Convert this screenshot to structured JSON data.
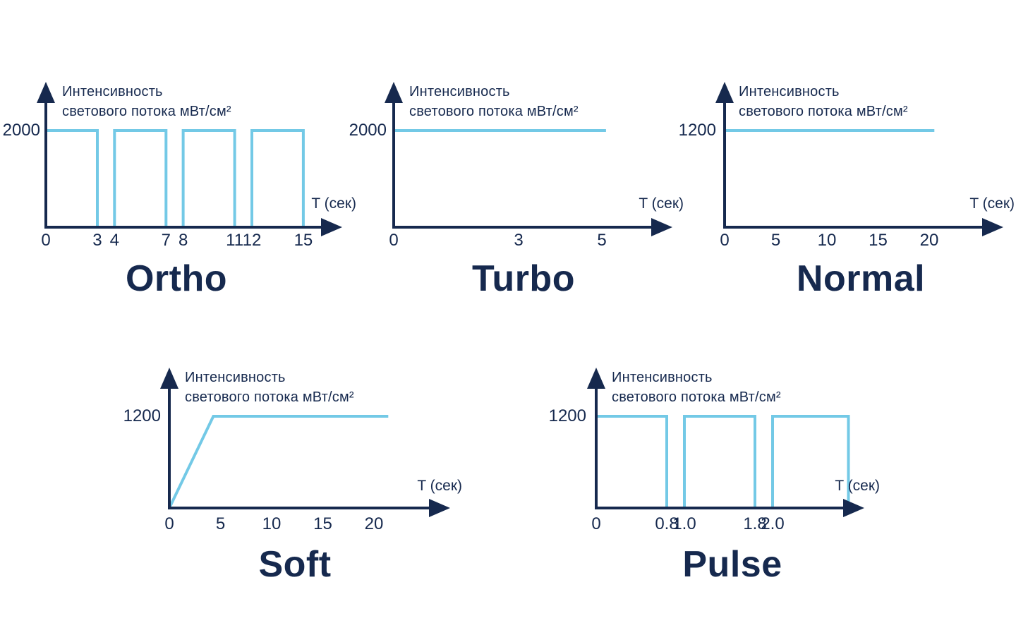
{
  "page": {
    "background": "#ffffff"
  },
  "colors": {
    "navy": "#16294e",
    "light_blue": "#73c9e6"
  },
  "chart_data": [
    {
      "id": "ortho",
      "type": "line",
      "title": "Ortho",
      "ylabel_line1": "Интенсивность",
      "ylabel_line2": "светового потока мВт/см²",
      "xlabel": "T (сек)",
      "y_level": 2000,
      "y_level_label": "2000",
      "x_range": [
        0,
        15
      ],
      "grid": false,
      "x_ticks": [
        {
          "v": 0,
          "label": "0"
        },
        {
          "v": 3,
          "label": "3"
        },
        {
          "v": 4,
          "label": "4"
        },
        {
          "v": 7,
          "label": "7"
        },
        {
          "v": 8,
          "label": "8"
        },
        {
          "v": 11,
          "label": "11"
        },
        {
          "v": 12,
          "label": "12"
        },
        {
          "v": 15,
          "label": "15"
        }
      ],
      "segments": [
        [
          [
            0,
            0
          ],
          [
            0,
            2000
          ],
          [
            3,
            2000
          ],
          [
            3,
            0
          ]
        ],
        [
          [
            4,
            0
          ],
          [
            4,
            2000
          ],
          [
            7,
            2000
          ],
          [
            7,
            0
          ]
        ],
        [
          [
            8,
            0
          ],
          [
            8,
            2000
          ],
          [
            11,
            2000
          ],
          [
            11,
            0
          ]
        ],
        [
          [
            12,
            0
          ],
          [
            12,
            2000
          ],
          [
            15,
            2000
          ],
          [
            15,
            0
          ]
        ]
      ]
    },
    {
      "id": "turbo",
      "type": "line",
      "title": "Turbo",
      "ylabel_line1": "Интенсивность",
      "ylabel_line2": "светового потока мВт/см²",
      "xlabel": "T (сек)",
      "y_level": 2000,
      "y_level_label": "2000",
      "x_range": [
        0,
        5
      ],
      "grid": false,
      "x_ticks": [
        {
          "v": 0,
          "label": "0"
        },
        {
          "v": 3,
          "label": "3"
        },
        {
          "v": 5,
          "label": "5"
        }
      ],
      "segments": [
        [
          [
            0,
            2000
          ],
          [
            5.1,
            2000
          ]
        ]
      ]
    },
    {
      "id": "normal",
      "type": "line",
      "title": "Normal",
      "ylabel_line1": "Интенсивность",
      "ylabel_line2": "светового потока мВт/см²",
      "xlabel": "T (сек)",
      "y_level": 1200,
      "y_level_label": "1200",
      "x_range": [
        0,
        20
      ],
      "grid": false,
      "x_ticks": [
        {
          "v": 0,
          "label": "0"
        },
        {
          "v": 5,
          "label": "5"
        },
        {
          "v": 10,
          "label": "10"
        },
        {
          "v": 15,
          "label": "15"
        },
        {
          "v": 20,
          "label": "20"
        }
      ],
      "segments": [
        [
          [
            0,
            1200
          ],
          [
            20.5,
            1200
          ]
        ]
      ]
    },
    {
      "id": "soft",
      "type": "line",
      "title": "Soft",
      "ylabel_line1": "Интенсивность",
      "ylabel_line2": "светового потока мВт/см²",
      "xlabel": "T (сек)",
      "y_level": 1200,
      "y_level_label": "1200",
      "x_range": [
        0,
        20
      ],
      "grid": false,
      "x_ticks": [
        {
          "v": 0,
          "label": "0"
        },
        {
          "v": 5,
          "label": "5"
        },
        {
          "v": 10,
          "label": "10"
        },
        {
          "v": 15,
          "label": "15"
        },
        {
          "v": 20,
          "label": "20"
        }
      ],
      "segments": [
        [
          [
            0,
            0
          ],
          [
            4.3,
            1200
          ],
          [
            21.4,
            1200
          ]
        ]
      ]
    },
    {
      "id": "pulse",
      "type": "line",
      "title": "Pulse",
      "ylabel_line1": "Интенсивность",
      "ylabel_line2": "светового потока мВт/см²",
      "xlabel": "T (сек)",
      "y_level": 1200,
      "y_level_label": "1200",
      "x_range": [
        0,
        2.0
      ],
      "grid": false,
      "x_ticks": [
        {
          "v": 0,
          "label": "0"
        },
        {
          "v": 0.8,
          "label": "0.8"
        },
        {
          "v": 1.0,
          "label": "1.0"
        },
        {
          "v": 1.8,
          "label": "1.8"
        },
        {
          "v": 2.0,
          "label": "2.0"
        }
      ],
      "segments": [
        [
          [
            0,
            0
          ],
          [
            0,
            1200
          ],
          [
            0.8,
            1200
          ],
          [
            0.8,
            0
          ]
        ],
        [
          [
            1.0,
            0
          ],
          [
            1.0,
            1200
          ],
          [
            1.8,
            1200
          ],
          [
            1.8,
            0
          ]
        ],
        [
          [
            2.0,
            0
          ],
          [
            2.0,
            1200
          ],
          [
            2.86,
            1200
          ],
          [
            2.86,
            0
          ]
        ]
      ]
    }
  ]
}
